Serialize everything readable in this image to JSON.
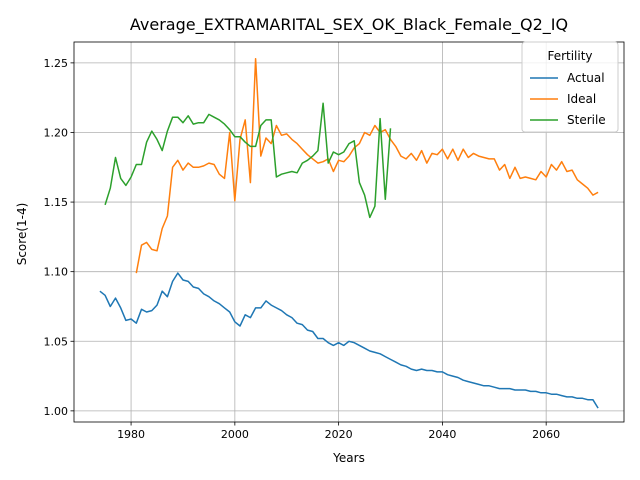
{
  "chart_data": {
    "type": "line",
    "title": "Average_EXTRAMARITAL_SEX_OK_Black_Female_Q2_IQ",
    "xlabel": "Years",
    "ylabel": "Score(1-4)",
    "xlim": [
      1969,
      2075
    ],
    "ylim": [
      0.992,
      1.265
    ],
    "xticks": [
      1980,
      2000,
      2020,
      2040,
      2060
    ],
    "yticks": [
      1.0,
      1.05,
      1.1,
      1.15,
      1.2,
      1.25
    ],
    "ytick_labels": [
      "1.00",
      "1.05",
      "1.10",
      "1.15",
      "1.20",
      "1.25"
    ],
    "grid": true,
    "legend": {
      "title": "Fertility",
      "placement": "top-right"
    },
    "series": [
      {
        "name": "Actual",
        "color": "#1f77b4",
        "x": [
          1974,
          1975,
          1976,
          1977,
          1978,
          1979,
          1980,
          1981,
          1982,
          1983,
          1984,
          1985,
          1986,
          1987,
          1988,
          1989,
          1990,
          1991,
          1992,
          1993,
          1994,
          1995,
          1996,
          1997,
          1998,
          1999,
          2000,
          2001,
          2002,
          2003,
          2004,
          2005,
          2006,
          2007,
          2008,
          2009,
          2010,
          2011,
          2012,
          2013,
          2014,
          2015,
          2016,
          2017,
          2018,
          2019,
          2020,
          2021,
          2022,
          2023,
          2024,
          2025,
          2026,
          2027,
          2028,
          2029,
          2030,
          2031,
          2032,
          2033,
          2034,
          2035,
          2036,
          2037,
          2038,
          2039,
          2040,
          2041,
          2042,
          2043,
          2044,
          2045,
          2046,
          2047,
          2048,
          2049,
          2050,
          2051,
          2052,
          2053,
          2054,
          2055,
          2056,
          2057,
          2058,
          2059,
          2060,
          2061,
          2062,
          2063,
          2064,
          2065,
          2066,
          2067,
          2068,
          2069,
          2070
        ],
        "values": [
          1.086,
          1.083,
          1.075,
          1.081,
          1.074,
          1.065,
          1.066,
          1.063,
          1.073,
          1.071,
          1.072,
          1.076,
          1.086,
          1.082,
          1.093,
          1.099,
          1.094,
          1.093,
          1.089,
          1.088,
          1.084,
          1.082,
          1.079,
          1.077,
          1.074,
          1.071,
          1.064,
          1.061,
          1.069,
          1.067,
          1.074,
          1.074,
          1.079,
          1.076,
          1.074,
          1.072,
          1.069,
          1.067,
          1.063,
          1.062,
          1.058,
          1.057,
          1.052,
          1.052,
          1.049,
          1.047,
          1.049,
          1.047,
          1.05,
          1.049,
          1.047,
          1.045,
          1.043,
          1.042,
          1.041,
          1.039,
          1.037,
          1.035,
          1.033,
          1.032,
          1.03,
          1.029,
          1.03,
          1.029,
          1.029,
          1.028,
          1.028,
          1.026,
          1.025,
          1.024,
          1.022,
          1.021,
          1.02,
          1.019,
          1.018,
          1.018,
          1.017,
          1.016,
          1.016,
          1.016,
          1.015,
          1.015,
          1.015,
          1.014,
          1.014,
          1.013,
          1.013,
          1.012,
          1.012,
          1.011,
          1.01,
          1.01,
          1.009,
          1.009,
          1.008,
          1.008,
          1.002
        ]
      },
      {
        "name": "Ideal",
        "color": "#ff7f0e",
        "x": [
          1981,
          1982,
          1983,
          1984,
          1985,
          1986,
          1987,
          1988,
          1989,
          1990,
          1991,
          1992,
          1993,
          1994,
          1995,
          1996,
          1997,
          1998,
          1999,
          2000,
          2001,
          2002,
          2003,
          2004,
          2005,
          2006,
          2007,
          2008,
          2009,
          2010,
          2011,
          2012,
          2013,
          2014,
          2015,
          2016,
          2017,
          2018,
          2019,
          2020,
          2021,
          2022,
          2023,
          2024,
          2025,
          2026,
          2027,
          2028,
          2029,
          2030,
          2031,
          2032,
          2033,
          2034,
          2035,
          2036,
          2037,
          2038,
          2039,
          2040,
          2041,
          2042,
          2043,
          2044,
          2045,
          2046,
          2047,
          2048,
          2049,
          2050,
          2051,
          2052,
          2053,
          2054,
          2055,
          2056,
          2057,
          2058,
          2059,
          2060,
          2061,
          2062,
          2063,
          2064,
          2065,
          2066,
          2067,
          2068,
          2069,
          2070
        ],
        "values": [
          1.099,
          1.119,
          1.121,
          1.116,
          1.115,
          1.131,
          1.14,
          1.175,
          1.18,
          1.173,
          1.178,
          1.175,
          1.175,
          1.176,
          1.178,
          1.177,
          1.17,
          1.167,
          1.2,
          1.151,
          1.195,
          1.209,
          1.164,
          1.253,
          1.183,
          1.196,
          1.192,
          1.205,
          1.198,
          1.199,
          1.195,
          1.192,
          1.188,
          1.184,
          1.181,
          1.178,
          1.179,
          1.181,
          1.172,
          1.18,
          1.179,
          1.183,
          1.189,
          1.192,
          1.2,
          1.198,
          1.205,
          1.2,
          1.202,
          1.195,
          1.19,
          1.183,
          1.181,
          1.185,
          1.18,
          1.187,
          1.178,
          1.185,
          1.184,
          1.188,
          1.181,
          1.188,
          1.18,
          1.188,
          1.182,
          1.185,
          1.183,
          1.182,
          1.181,
          1.181,
          1.173,
          1.177,
          1.167,
          1.175,
          1.167,
          1.168,
          1.167,
          1.166,
          1.172,
          1.168,
          1.177,
          1.173,
          1.179,
          1.172,
          1.173,
          1.166,
          1.163,
          1.16,
          1.155,
          1.157
        ]
      },
      {
        "name": "Sterile",
        "color": "#2ca02c",
        "x": [
          1975,
          1976,
          1977,
          1978,
          1979,
          1980,
          1981,
          1982,
          1983,
          1984,
          1985,
          1986,
          1987,
          1988,
          1989,
          1990,
          1991,
          1992,
          1993,
          1994,
          1995,
          1996,
          1997,
          1998,
          1999,
          2000,
          2001,
          2002,
          2003,
          2004,
          2005,
          2006,
          2007,
          2008,
          2009,
          2010,
          2011,
          2012,
          2013,
          2014,
          2015,
          2016,
          2017,
          2018,
          2019,
          2020,
          2021,
          2022,
          2023,
          2024,
          2025,
          2026,
          2027,
          2028,
          2029,
          2030
        ],
        "values": [
          1.148,
          1.16,
          1.182,
          1.167,
          1.162,
          1.168,
          1.177,
          1.177,
          1.193,
          1.201,
          1.195,
          1.187,
          1.201,
          1.211,
          1.211,
          1.207,
          1.212,
          1.206,
          1.207,
          1.207,
          1.213,
          1.211,
          1.209,
          1.206,
          1.202,
          1.197,
          1.197,
          1.193,
          1.19,
          1.19,
          1.205,
          1.209,
          1.209,
          1.168,
          1.17,
          1.171,
          1.172,
          1.171,
          1.178,
          1.18,
          1.183,
          1.187,
          1.221,
          1.178,
          1.186,
          1.184,
          1.186,
          1.192,
          1.194,
          1.164,
          1.155,
          1.139,
          1.147,
          1.21,
          1.152,
          1.203
        ]
      }
    ]
  }
}
